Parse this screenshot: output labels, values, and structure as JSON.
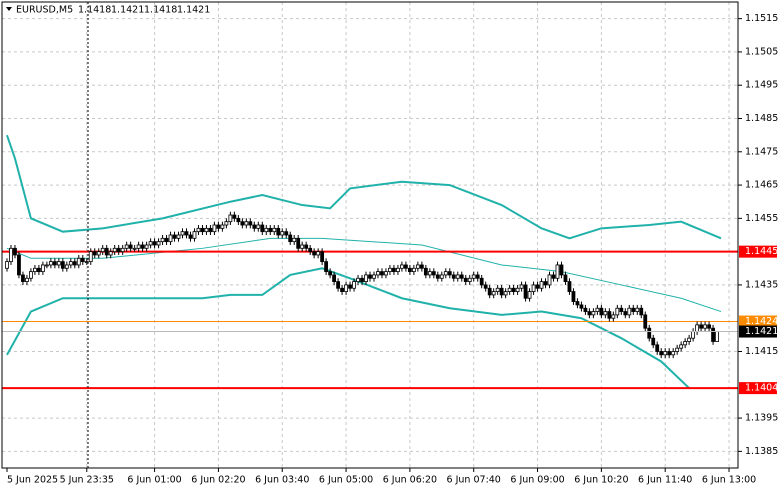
{
  "chart_data": {
    "type": "candlestick",
    "symbol": "EURUSD,M5",
    "ohlc": [
      [
        1.144,
        1.1443,
        1.1439,
        1.1442
      ],
      [
        1.1442,
        1.1447,
        1.1441,
        1.1446
      ],
      [
        1.1446,
        1.1447,
        1.1443,
        1.1444
      ],
      [
        1.1444,
        1.1445,
        1.1437,
        1.1438
      ],
      [
        1.1438,
        1.1439,
        1.1435,
        1.1436
      ],
      [
        1.1436,
        1.1438,
        1.1435,
        1.1437
      ],
      [
        1.1437,
        1.144,
        1.1436,
        1.1439
      ],
      [
        1.1439,
        1.1441,
        1.1438,
        1.144
      ],
      [
        1.144,
        1.1441,
        1.1438,
        1.1439
      ],
      [
        1.1439,
        1.1442,
        1.1438,
        1.1441
      ],
      [
        1.1441,
        1.1442,
        1.144,
        1.1441
      ],
      [
        1.1441,
        1.1443,
        1.144,
        1.1442
      ],
      [
        1.1442,
        1.1443,
        1.144,
        1.1441
      ],
      [
        1.1441,
        1.1443,
        1.144,
        1.1442
      ],
      [
        1.1442,
        1.1443,
        1.1439,
        1.144
      ],
      [
        1.144,
        1.1442,
        1.1439,
        1.1441
      ],
      [
        1.1441,
        1.1443,
        1.144,
        1.1442
      ],
      [
        1.1442,
        1.1443,
        1.144,
        1.1441
      ],
      [
        1.1441,
        1.1444,
        1.144,
        1.1443
      ],
      [
        1.1443,
        1.1444,
        1.1441,
        1.1442
      ],
      [
        1.1442,
        1.1443,
        1.1441,
        1.1442
      ],
      [
        1.1442,
        1.1446,
        1.1441,
        1.1445
      ],
      [
        1.1445,
        1.1446,
        1.1443,
        1.1444
      ],
      [
        1.1444,
        1.1446,
        1.1443,
        1.1445
      ],
      [
        1.1445,
        1.1447,
        1.1444,
        1.1446
      ],
      [
        1.1446,
        1.1447,
        1.1443,
        1.1444
      ],
      [
        1.1444,
        1.1446,
        1.1443,
        1.1445
      ],
      [
        1.1445,
        1.1447,
        1.1444,
        1.1446
      ],
      [
        1.1446,
        1.1447,
        1.1444,
        1.1445
      ],
      [
        1.1445,
        1.1447,
        1.1444,
        1.1446
      ],
      [
        1.1446,
        1.1448,
        1.1445,
        1.1447
      ],
      [
        1.1447,
        1.1448,
        1.1445,
        1.1446
      ],
      [
        1.1446,
        1.1447,
        1.1445,
        1.1446
      ],
      [
        1.1446,
        1.1448,
        1.1445,
        1.1447
      ],
      [
        1.1447,
        1.1448,
        1.1445,
        1.1446
      ],
      [
        1.1446,
        1.1448,
        1.1445,
        1.1447
      ],
      [
        1.1447,
        1.1449,
        1.1446,
        1.1448
      ],
      [
        1.1448,
        1.1449,
        1.1446,
        1.1447
      ],
      [
        1.1447,
        1.1449,
        1.1446,
        1.1448
      ],
      [
        1.1448,
        1.145,
        1.1447,
        1.1449
      ],
      [
        1.1449,
        1.145,
        1.1447,
        1.1448
      ],
      [
        1.1448,
        1.1451,
        1.1447,
        1.145
      ],
      [
        1.145,
        1.1451,
        1.1448,
        1.1449
      ],
      [
        1.1449,
        1.1451,
        1.1448,
        1.145
      ],
      [
        1.145,
        1.1452,
        1.1449,
        1.1451
      ],
      [
        1.1451,
        1.1452,
        1.1449,
        1.145
      ],
      [
        1.145,
        1.1451,
        1.1448,
        1.1449
      ],
      [
        1.1449,
        1.1452,
        1.1448,
        1.1451
      ],
      [
        1.1451,
        1.1453,
        1.145,
        1.1452
      ],
      [
        1.1452,
        1.1453,
        1.145,
        1.1451
      ],
      [
        1.1451,
        1.1453,
        1.145,
        1.1452
      ],
      [
        1.1452,
        1.1453,
        1.145,
        1.1451
      ],
      [
        1.1451,
        1.1454,
        1.145,
        1.1453
      ],
      [
        1.1453,
        1.1454,
        1.1451,
        1.1452
      ],
      [
        1.1452,
        1.1454,
        1.1451,
        1.1453
      ],
      [
        1.1453,
        1.1455,
        1.1452,
        1.1454
      ],
      [
        1.1454,
        1.1457,
        1.1453,
        1.1456
      ],
      [
        1.1456,
        1.1457,
        1.1454,
        1.1455
      ],
      [
        1.1455,
        1.1456,
        1.1453,
        1.1454
      ],
      [
        1.1454,
        1.1455,
        1.1452,
        1.1453
      ],
      [
        1.1453,
        1.1455,
        1.1452,
        1.1454
      ],
      [
        1.1454,
        1.1455,
        1.1452,
        1.1453
      ],
      [
        1.1453,
        1.1454,
        1.1451,
        1.1452
      ],
      [
        1.1452,
        1.1454,
        1.1451,
        1.1453
      ],
      [
        1.1453,
        1.1454,
        1.145,
        1.1451
      ],
      [
        1.1451,
        1.1453,
        1.145,
        1.1452
      ],
      [
        1.1452,
        1.1453,
        1.145,
        1.1451
      ],
      [
        1.1451,
        1.1453,
        1.145,
        1.1452
      ],
      [
        1.1452,
        1.1453,
        1.1449,
        1.145
      ],
      [
        1.145,
        1.1452,
        1.1449,
        1.1451
      ],
      [
        1.1451,
        1.1452,
        1.1449,
        1.145
      ],
      [
        1.145,
        1.1451,
        1.1447,
        1.1448
      ],
      [
        1.1448,
        1.145,
        1.1447,
        1.1449
      ],
      [
        1.1449,
        1.145,
        1.1445,
        1.1446
      ],
      [
        1.1446,
        1.1448,
        1.1445,
        1.1447
      ],
      [
        1.1447,
        1.1448,
        1.1445,
        1.1446
      ],
      [
        1.1446,
        1.1447,
        1.1444,
        1.1445
      ],
      [
        1.1445,
        1.1446,
        1.1443,
        1.1444
      ],
      [
        1.1444,
        1.1446,
        1.1443,
        1.1445
      ],
      [
        1.1445,
        1.1446,
        1.1441,
        1.1442
      ],
      [
        1.1442,
        1.1443,
        1.1438,
        1.1439
      ],
      [
        1.1439,
        1.144,
        1.1437,
        1.1438
      ],
      [
        1.1438,
        1.1439,
        1.1435,
        1.1436
      ],
      [
        1.1436,
        1.1437,
        1.1433,
        1.1434
      ],
      [
        1.1434,
        1.1435,
        1.1432,
        1.1433
      ],
      [
        1.1433,
        1.1436,
        1.1432,
        1.1435
      ],
      [
        1.1435,
        1.1436,
        1.1433,
        1.1434
      ],
      [
        1.1434,
        1.1437,
        1.1433,
        1.1436
      ],
      [
        1.1436,
        1.1438,
        1.1435,
        1.1437
      ],
      [
        1.1437,
        1.1438,
        1.1435,
        1.1436
      ],
      [
        1.1436,
        1.1439,
        1.1435,
        1.1438
      ],
      [
        1.1438,
        1.1439,
        1.1436,
        1.1437
      ],
      [
        1.1437,
        1.1439,
        1.1436,
        1.1438
      ],
      [
        1.1438,
        1.144,
        1.1437,
        1.1439
      ],
      [
        1.1439,
        1.144,
        1.1437,
        1.1438
      ],
      [
        1.1438,
        1.144,
        1.1437,
        1.1439
      ],
      [
        1.1439,
        1.1441,
        1.1438,
        1.144
      ],
      [
        1.144,
        1.1441,
        1.1438,
        1.1439
      ],
      [
        1.1439,
        1.1441,
        1.1438,
        1.144
      ],
      [
        1.144,
        1.1442,
        1.1439,
        1.1441
      ],
      [
        1.1441,
        1.1442,
        1.1439,
        1.144
      ],
      [
        1.144,
        1.1441,
        1.1438,
        1.1439
      ],
      [
        1.1439,
        1.1441,
        1.1438,
        1.144
      ],
      [
        1.144,
        1.1442,
        1.1439,
        1.1441
      ],
      [
        1.1441,
        1.1442,
        1.1439,
        1.144
      ],
      [
        1.144,
        1.1441,
        1.1437,
        1.1438
      ],
      [
        1.1438,
        1.144,
        1.1437,
        1.1439
      ],
      [
        1.1439,
        1.144,
        1.1437,
        1.1438
      ],
      [
        1.1438,
        1.1439,
        1.1436,
        1.1437
      ],
      [
        1.1437,
        1.1439,
        1.1436,
        1.1438
      ],
      [
        1.1438,
        1.144,
        1.1437,
        1.1439
      ],
      [
        1.1439,
        1.144,
        1.1437,
        1.1438
      ],
      [
        1.1438,
        1.1439,
        1.1436,
        1.1437
      ],
      [
        1.1437,
        1.1439,
        1.1436,
        1.1438
      ],
      [
        1.1438,
        1.1439,
        1.1436,
        1.1437
      ],
      [
        1.1437,
        1.1438,
        1.1435,
        1.1436
      ],
      [
        1.1436,
        1.1438,
        1.1435,
        1.1437
      ],
      [
        1.1437,
        1.1439,
        1.1436,
        1.1438
      ],
      [
        1.1438,
        1.1439,
        1.1436,
        1.1437
      ],
      [
        1.1437,
        1.1438,
        1.1434,
        1.1435
      ],
      [
        1.1435,
        1.1436,
        1.1433,
        1.1434
      ],
      [
        1.1434,
        1.1435,
        1.1431,
        1.1432
      ],
      [
        1.1432,
        1.1434,
        1.1431,
        1.1433
      ],
      [
        1.1433,
        1.1435,
        1.1432,
        1.1434
      ],
      [
        1.1434,
        1.1435,
        1.1431,
        1.1432
      ],
      [
        1.1432,
        1.1434,
        1.1431,
        1.1433
      ],
      [
        1.1433,
        1.1435,
        1.1432,
        1.1434
      ],
      [
        1.1434,
        1.1435,
        1.1432,
        1.1433
      ],
      [
        1.1433,
        1.1435,
        1.1432,
        1.1434
      ],
      [
        1.1434,
        1.1436,
        1.1433,
        1.1435
      ],
      [
        1.1435,
        1.1436,
        1.143,
        1.1431
      ],
      [
        1.1431,
        1.1434,
        1.143,
        1.1433
      ],
      [
        1.1433,
        1.1436,
        1.1432,
        1.1435
      ],
      [
        1.1435,
        1.1436,
        1.1433,
        1.1434
      ],
      [
        1.1434,
        1.1437,
        1.1433,
        1.1436
      ],
      [
        1.1436,
        1.1437,
        1.1434,
        1.1435
      ],
      [
        1.1435,
        1.1439,
        1.1434,
        1.1438
      ],
      [
        1.1438,
        1.1439,
        1.1436,
        1.1437
      ],
      [
        1.1437,
        1.1442,
        1.1436,
        1.1441
      ],
      [
        1.1441,
        1.1442,
        1.1437,
        1.1438
      ],
      [
        1.1438,
        1.1439,
        1.1435,
        1.1436
      ],
      [
        1.1436,
        1.1437,
        1.1432,
        1.1433
      ],
      [
        1.1433,
        1.1434,
        1.1429,
        1.143
      ],
      [
        1.143,
        1.1431,
        1.1428,
        1.1429
      ],
      [
        1.1429,
        1.143,
        1.1427,
        1.1428
      ],
      [
        1.1428,
        1.1429,
        1.1426,
        1.1427
      ],
      [
        1.1427,
        1.1428,
        1.1425,
        1.1426
      ],
      [
        1.1426,
        1.1428,
        1.1425,
        1.1427
      ],
      [
        1.1427,
        1.1429,
        1.1426,
        1.1428
      ],
      [
        1.1428,
        1.1429,
        1.1425,
        1.1426
      ],
      [
        1.1426,
        1.1428,
        1.1425,
        1.1427
      ],
      [
        1.1427,
        1.1428,
        1.1424,
        1.1425
      ],
      [
        1.1425,
        1.1427,
        1.1424,
        1.1426
      ],
      [
        1.1426,
        1.1429,
        1.1425,
        1.1428
      ],
      [
        1.1428,
        1.1429,
        1.1426,
        1.1427
      ],
      [
        1.1427,
        1.1428,
        1.1425,
        1.1426
      ],
      [
        1.1426,
        1.1429,
        1.1425,
        1.1428
      ],
      [
        1.1428,
        1.1429,
        1.1426,
        1.1427
      ],
      [
        1.1427,
        1.1429,
        1.1426,
        1.1428
      ],
      [
        1.1428,
        1.1429,
        1.1425,
        1.1426
      ],
      [
        1.1426,
        1.1427,
        1.1421,
        1.1422
      ],
      [
        1.1422,
        1.1423,
        1.1418,
        1.1419
      ],
      [
        1.1419,
        1.142,
        1.1416,
        1.1417
      ],
      [
        1.1417,
        1.1418,
        1.1414,
        1.1415
      ],
      [
        1.1415,
        1.1416,
        1.1413,
        1.1414
      ],
      [
        1.1414,
        1.1416,
        1.1413,
        1.1415
      ],
      [
        1.1415,
        1.1416,
        1.1413,
        1.1414
      ],
      [
        1.1414,
        1.1416,
        1.1413,
        1.1415
      ],
      [
        1.1415,
        1.1417,
        1.1414,
        1.1416
      ],
      [
        1.1416,
        1.1418,
        1.1415,
        1.1417
      ],
      [
        1.1417,
        1.1419,
        1.1416,
        1.1418
      ],
      [
        1.1418,
        1.142,
        1.1417,
        1.1419
      ],
      [
        1.1419,
        1.1422,
        1.1418,
        1.1421
      ],
      [
        1.1421,
        1.1424,
        1.142,
        1.1423
      ],
      [
        1.1423,
        1.1424,
        1.1421,
        1.1422
      ],
      [
        1.1422,
        1.1424,
        1.1421,
        1.1423
      ],
      [
        1.1423,
        1.1424,
        1.1421,
        1.1422
      ],
      [
        1.1422,
        1.1423,
        1.1417,
        1.1418
      ],
      [
        1.1418,
        1.1421,
        1.1418,
        1.1421
      ]
    ],
    "bands": [
      {
        "name": "upper",
        "color": "#20b2aa",
        "x": [
          0,
          2,
          6,
          14,
          24,
          39,
          56,
          64,
          74,
          81,
          86,
          99,
          111,
          124,
          134,
          141,
          149,
          161,
          169,
          179
        ],
        "values": [
          1.148,
          1.1473,
          1.1455,
          1.1451,
          1.1452,
          1.1455,
          1.146,
          1.1462,
          1.1459,
          1.1458,
          1.1464,
          1.1466,
          1.1465,
          1.1459,
          1.1452,
          1.1449,
          1.1452,
          1.1453,
          1.1454,
          1.1449
        ]
      },
      {
        "name": "middle",
        "color": "#20b2aa",
        "x": [
          0,
          6,
          24,
          49,
          66,
          79,
          104,
          124,
          139,
          154,
          169,
          179
        ],
        "values": [
          1.1446,
          1.1443,
          1.1443,
          1.1446,
          1.1449,
          1.1449,
          1.1447,
          1.1441,
          1.1439,
          1.1435,
          1.1431,
          1.1427
        ]
      },
      {
        "name": "lower",
        "color": "#20b2aa",
        "x": [
          0,
          6,
          14,
          24,
          49,
          56,
          64,
          71,
          79,
          86,
          99,
          111,
          124,
          134,
          144,
          154,
          164,
          171
        ],
        "values": [
          1.1414,
          1.1427,
          1.1431,
          1.1431,
          1.1431,
          1.1432,
          1.1432,
          1.1438,
          1.144,
          1.1437,
          1.1431,
          1.1428,
          1.1426,
          1.1427,
          1.1425,
          1.1419,
          1.1412,
          1.1404
        ]
      }
    ],
    "levels": [
      {
        "price": 1.1445,
        "color": "#ff0000"
      },
      {
        "price": 1.1404,
        "color": "#ff0000"
      },
      {
        "price": 1.1424,
        "color": "#ff8c00"
      }
    ],
    "ylim": [
      1.138,
      1.152
    ],
    "yticks": [
      1.1385,
      1.1395,
      1.1415,
      1.1435,
      1.1455,
      1.1465,
      1.1475,
      1.1485,
      1.1495,
      1.1505,
      1.1515
    ],
    "xlim": [
      -1.25,
      183.25
    ],
    "xticks": [
      {
        "value": 0,
        "label": "5 Jun 2025"
      },
      {
        "value": 20,
        "label": "5 Jun 23:35"
      },
      {
        "value": 37,
        "label": "6 Jun 01:00"
      },
      {
        "value": 53,
        "label": "6 Jun 02:20"
      },
      {
        "value": 69,
        "label": "6 Jun 03:40"
      },
      {
        "value": 85,
        "label": "6 Jun 05:00"
      },
      {
        "value": 101,
        "label": "6 Jun 06:20"
      },
      {
        "value": 117,
        "label": "6 Jun 07:40"
      },
      {
        "value": 133,
        "label": "6 Jun 09:00"
      },
      {
        "value": 149,
        "label": "6 Jun 10:20"
      },
      {
        "value": 165,
        "label": "6 Jun 11:40"
      },
      {
        "value": 181,
        "label": "6 Jun 13:00"
      }
    ],
    "grid": true
  }
}
